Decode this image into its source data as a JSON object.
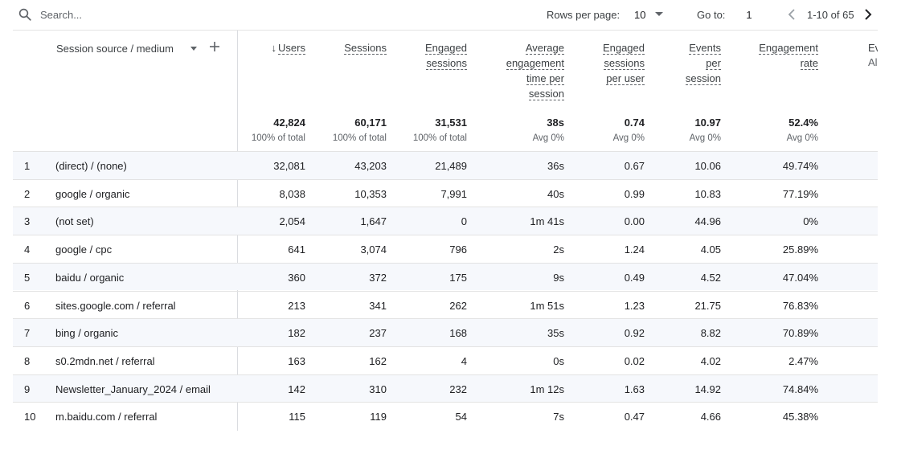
{
  "toolbar": {
    "search_placeholder": "Search...",
    "rows_per_page_label": "Rows per page:",
    "rows_per_page_value": "10",
    "go_to_label": "Go to:",
    "go_to_value": "1",
    "pagination_text": "1-10 of 65"
  },
  "table": {
    "dimension_header": "Session source / medium",
    "columns": [
      {
        "id": "users",
        "label": "Users",
        "sorted": "desc",
        "total": "42,824",
        "total_sub": "100% of total"
      },
      {
        "id": "sessions",
        "label": "Sessions",
        "total": "60,171",
        "total_sub": "100% of total"
      },
      {
        "id": "engaged_sessions",
        "label": "Engaged sessions",
        "total": "31,531",
        "total_sub": "100% of total"
      },
      {
        "id": "avg_engagement_time",
        "label": "Average engagement time per session",
        "total": "38s",
        "total_sub": "Avg 0%"
      },
      {
        "id": "engaged_sessions_per_user",
        "label": "Engaged sessions per user",
        "total": "0.74",
        "total_sub": "Avg 0%"
      },
      {
        "id": "events_per_session",
        "label": "Events per session",
        "total": "10.97",
        "total_sub": "Avg 0%"
      },
      {
        "id": "engagement_rate",
        "label": "Engagement rate",
        "total": "52.4%",
        "total_sub": "Avg 0%"
      }
    ],
    "clipped_column": {
      "label": "Ev",
      "sub": "All"
    },
    "rows": [
      {
        "idx": "1",
        "dim": "(direct) / (none)",
        "vals": [
          "32,081",
          "43,203",
          "21,489",
          "36s",
          "0.67",
          "10.06",
          "49.74%"
        ]
      },
      {
        "idx": "2",
        "dim": "google / organic",
        "vals": [
          "8,038",
          "10,353",
          "7,991",
          "40s",
          "0.99",
          "10.83",
          "77.19%"
        ]
      },
      {
        "idx": "3",
        "dim": "(not set)",
        "vals": [
          "2,054",
          "1,647",
          "0",
          "1m 41s",
          "0.00",
          "44.96",
          "0%"
        ]
      },
      {
        "idx": "4",
        "dim": "google / cpc",
        "vals": [
          "641",
          "3,074",
          "796",
          "2s",
          "1.24",
          "4.05",
          "25.89%"
        ]
      },
      {
        "idx": "5",
        "dim": "baidu / organic",
        "vals": [
          "360",
          "372",
          "175",
          "9s",
          "0.49",
          "4.52",
          "47.04%"
        ]
      },
      {
        "idx": "6",
        "dim": "sites.google.com / referral",
        "vals": [
          "213",
          "341",
          "262",
          "1m 51s",
          "1.23",
          "21.75",
          "76.83%"
        ]
      },
      {
        "idx": "7",
        "dim": "bing / organic",
        "vals": [
          "182",
          "237",
          "168",
          "35s",
          "0.92",
          "8.82",
          "70.89%"
        ]
      },
      {
        "idx": "8",
        "dim": "s0.2mdn.net / referral",
        "vals": [
          "163",
          "162",
          "4",
          "0s",
          "0.02",
          "4.02",
          "2.47%"
        ]
      },
      {
        "idx": "9",
        "dim": "Newsletter_January_2024 / email",
        "vals": [
          "142",
          "310",
          "232",
          "1m 12s",
          "1.63",
          "14.92",
          "74.84%"
        ]
      },
      {
        "idx": "10",
        "dim": "m.baidu.com / referral",
        "vals": [
          "115",
          "119",
          "54",
          "7s",
          "0.47",
          "4.66",
          "45.38%"
        ]
      }
    ]
  }
}
